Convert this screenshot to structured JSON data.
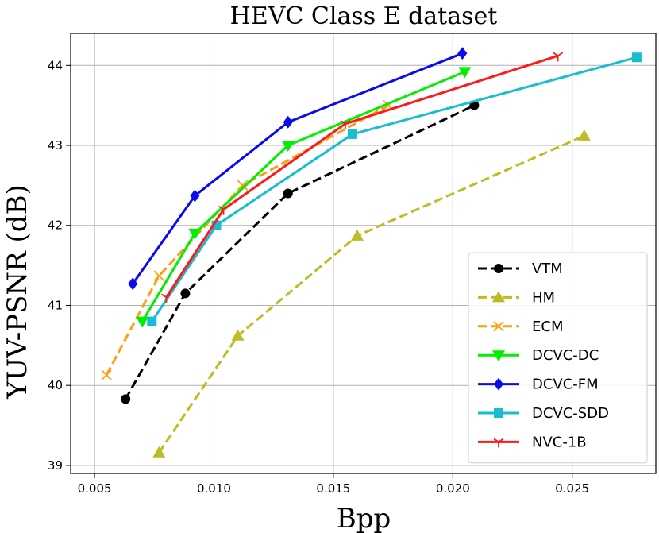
{
  "chart_data": {
    "type": "line",
    "title": "HEVC Class E dataset",
    "xlabel": "Bpp",
    "ylabel": "YUV-PSNR (dB)",
    "xlim": [
      0.004,
      0.0285
    ],
    "ylim": [
      38.9,
      44.4
    ],
    "x_ticks": [
      0.005,
      0.01,
      0.015,
      0.02,
      0.025
    ],
    "x_tick_labels": [
      "0.005",
      "0.010",
      "0.015",
      "0.020",
      "0.025"
    ],
    "y_ticks": [
      39,
      40,
      41,
      42,
      43,
      44
    ],
    "y_tick_labels": [
      "39",
      "40",
      "41",
      "42",
      "43",
      "44"
    ],
    "grid": true,
    "legend_position": "bottom-right",
    "series": [
      {
        "name": "VTM",
        "color": "#000000",
        "dash": "dashed",
        "marker": "circle",
        "x": [
          0.0063,
          0.0088,
          0.0131,
          0.0209
        ],
        "y": [
          39.83,
          41.15,
          42.4,
          43.5
        ]
      },
      {
        "name": "HM",
        "color": "#bcbd22",
        "dash": "dashed",
        "marker": "triangle-up",
        "x": [
          0.0077,
          0.011,
          0.016,
          0.0255
        ],
        "y": [
          39.16,
          40.62,
          41.87,
          43.12
        ]
      },
      {
        "name": "ECM",
        "color": "#ff9f0f",
        "dash": "dashed",
        "marker": "x",
        "x": [
          0.0055,
          0.0077,
          0.0112,
          0.0173
        ],
        "y": [
          40.13,
          41.37,
          42.5,
          43.5
        ]
      },
      {
        "name": "DCVC-DC",
        "color": "#00ee00",
        "dash": "solid",
        "marker": "triangle-down",
        "x": [
          0.007,
          0.0092,
          0.0131,
          0.0205
        ],
        "y": [
          40.8,
          41.9,
          43.0,
          43.92
        ]
      },
      {
        "name": "DCVC-FM",
        "color": "#0a0aee",
        "dash": "solid",
        "marker": "diamond",
        "x": [
          0.0066,
          0.0092,
          0.0131,
          0.0204
        ],
        "y": [
          41.27,
          42.37,
          43.29,
          44.15
        ]
      },
      {
        "name": "DCVC-SDD",
        "color": "#17becf",
        "dash": "solid",
        "marker": "square",
        "x": [
          0.0074,
          0.0101,
          0.0158,
          0.0277
        ],
        "y": [
          40.8,
          42.0,
          43.14,
          44.1
        ]
      },
      {
        "name": "NVC-1B",
        "color": "#ff1a1a",
        "dash": "solid",
        "marker": "tri-down",
        "x": [
          0.008,
          0.0104,
          0.0155,
          0.0244
        ],
        "y": [
          41.1,
          42.2,
          43.27,
          44.12
        ]
      }
    ]
  }
}
